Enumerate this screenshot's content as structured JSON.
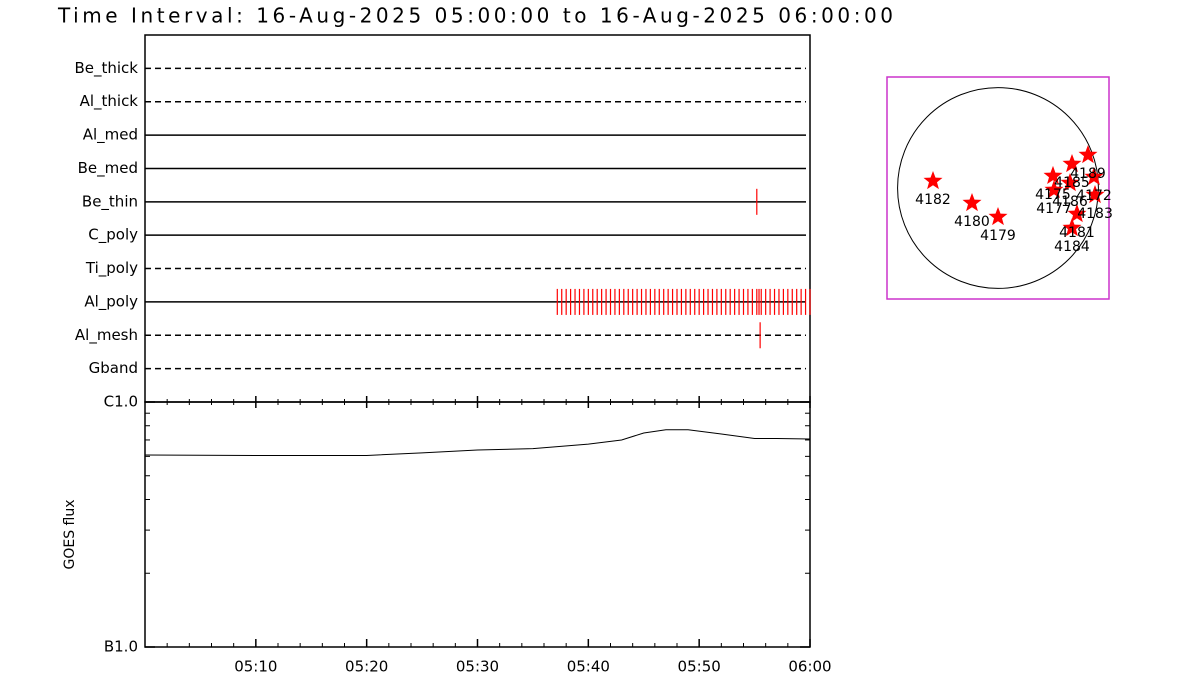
{
  "chart_data": [
    {
      "type": "timeline",
      "title": "Time Interval: 16-Aug-2025 05:00:00 to 16-Aug-2025 06:00:00",
      "categories": [
        "Be_thick",
        "Al_thick",
        "Al_med",
        "Be_med",
        "Be_thin",
        "C_poly",
        "Ti_poly",
        "Al_poly",
        "Al_mesh",
        "Gband"
      ],
      "line_styles": [
        "dashed",
        "dashed",
        "solid",
        "solid",
        "solid",
        "solid",
        "dashed",
        "solid",
        "dashed",
        "dashed"
      ],
      "events": [
        [],
        [],
        [],
        [],
        [
          55.2
        ],
        [],
        [],
        [
          37.2,
          37.6,
          38.0,
          38.4,
          38.8,
          39.2,
          39.6,
          40.0,
          40.4,
          40.8,
          41.2,
          41.6,
          42.0,
          42.4,
          42.8,
          43.2,
          43.6,
          44.0,
          44.4,
          44.8,
          45.2,
          45.6,
          46.0,
          46.4,
          46.8,
          47.2,
          47.6,
          48.0,
          48.4,
          48.8,
          49.2,
          49.6,
          50.0,
          50.4,
          50.8,
          51.2,
          51.6,
          52.0,
          52.4,
          52.8,
          53.2,
          53.6,
          54.0,
          54.4,
          54.8,
          55.2,
          55.4,
          55.6,
          56.0,
          56.4,
          56.8,
          57.2,
          57.6,
          58.0,
          58.4,
          58.8,
          59.2,
          59.6,
          60.0
        ],
        [
          55.5
        ],
        []
      ],
      "color": "#ff0000",
      "xlim": [
        0,
        60
      ]
    },
    {
      "type": "line",
      "ylabel": "GOES flux",
      "x": [
        0,
        5,
        10,
        15,
        20,
        25,
        30,
        35,
        40,
        43,
        45,
        47,
        49,
        52,
        55,
        57,
        60
      ],
      "values": [
        6.08e-07,
        6.06e-07,
        6.05e-07,
        6.05e-07,
        6.05e-07,
        6.2e-07,
        6.37e-07,
        6.45e-07,
        6.73e-07,
        7e-07,
        7.47e-07,
        7.7e-07,
        7.7e-07,
        7.4e-07,
        7.1e-07,
        7.1e-07,
        7.06e-07
      ],
      "color": "#000000",
      "log_scale": true,
      "ylim": [
        1e-07,
        1e-06
      ],
      "yticks": [
        {
          "value": 1e-07,
          "label": "B1.0"
        },
        {
          "value": 1e-06,
          "label": "C1.0"
        }
      ],
      "yminorticks": [
        2e-07,
        3e-07,
        4e-07,
        5e-07,
        6e-07,
        7e-07,
        8e-07,
        9e-07
      ],
      "xlim": [
        0,
        60
      ],
      "xticks": [
        {
          "value": 10,
          "label": "05:10"
        },
        {
          "value": 20,
          "label": "05:20"
        },
        {
          "value": 30,
          "label": "05:30"
        },
        {
          "value": 40,
          "label": "05:40"
        },
        {
          "value": 50,
          "label": "05:50"
        },
        {
          "value": 60,
          "label": "06:00"
        }
      ],
      "xminorticks": [
        2,
        4,
        6,
        8,
        12,
        14,
        16,
        18,
        22,
        24,
        26,
        28,
        32,
        34,
        36,
        38,
        42,
        44,
        46,
        48,
        52,
        54,
        56,
        58
      ]
    },
    {
      "type": "scatter",
      "radius": 950,
      "xlim": [
        -1050,
        1050
      ],
      "ylim": [
        -1050,
        1050
      ],
      "labels": [
        "4182",
        "4180",
        "4179",
        "4175",
        "4177",
        "4186",
        "4185",
        "4189",
        "4172",
        "4183",
        "4181",
        "4184"
      ],
      "x": [
        -615,
        -246,
        0,
        520,
        530,
        681,
        700,
        851,
        908,
        918,
        747,
        700
      ],
      "values": [
        66,
        -142,
        -274,
        114,
        -19,
        47,
        227,
        312,
        104,
        -66,
        -246,
        -378
      ],
      "color": "#ff0000",
      "frame_color": "#cc33cc"
    }
  ]
}
